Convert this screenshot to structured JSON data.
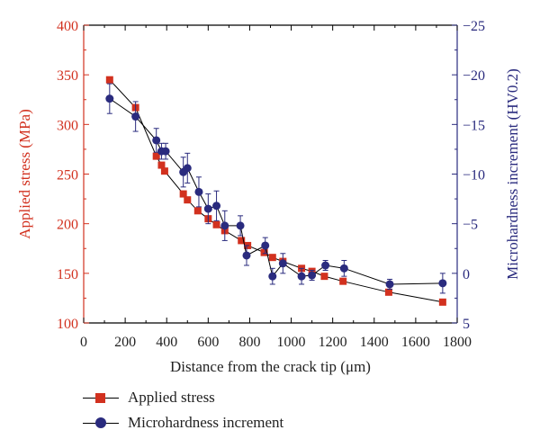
{
  "chart_data": {
    "type": "scatter",
    "xlabel": "Distance from the crack tip (μm)",
    "y1label": "Applied stress (MPa)",
    "y2label": "Microhardness increment (HV0.2)",
    "xlim": [
      0,
      1800
    ],
    "y1lim": [
      100,
      400
    ],
    "y2lim": [
      5,
      -25
    ],
    "xticks": [
      0,
      200,
      400,
      600,
      800,
      1000,
      1200,
      1400,
      1600,
      1800
    ],
    "y1ticks": [
      100,
      150,
      200,
      250,
      300,
      350,
      400
    ],
    "y2ticks": [
      5,
      0,
      -5,
      -10,
      -15,
      -20,
      -25
    ],
    "y2ticklabels": [
      "5",
      "0",
      "−5",
      "−10",
      "−15",
      "−20",
      "−25"
    ],
    "grid": false,
    "legend_position": "bottom-left",
    "colors": {
      "stress": "#d2311f",
      "micro": "#2a2b7e",
      "y1axis": "#d2311f",
      "y2axis": "#2a2b7e"
    },
    "series": [
      {
        "name": "Applied stress",
        "axis": "left",
        "marker": "square",
        "points": [
          [
            125,
            345
          ],
          [
            250,
            317
          ],
          [
            350,
            268
          ],
          [
            375,
            259
          ],
          [
            390,
            253
          ],
          [
            480,
            230
          ],
          [
            500,
            224
          ],
          [
            550,
            213
          ],
          [
            600,
            205
          ],
          [
            640,
            199
          ],
          [
            680,
            193
          ],
          [
            760,
            183
          ],
          [
            790,
            178
          ],
          [
            870,
            171
          ],
          [
            910,
            166
          ],
          [
            960,
            162
          ],
          [
            1050,
            155
          ],
          [
            1100,
            152
          ],
          [
            1160,
            147
          ],
          [
            1250,
            142
          ],
          [
            1470,
            131
          ],
          [
            1730,
            121
          ]
        ]
      },
      {
        "name": "Microhardness increment",
        "axis": "right",
        "marker": "circle",
        "points": [
          [
            125,
            -17.6,
            1.5
          ],
          [
            250,
            -15.8,
            1.5
          ],
          [
            350,
            -13.4,
            1.2
          ],
          [
            375,
            -12.3,
            0.8
          ],
          [
            395,
            -12.3,
            0.8
          ],
          [
            480,
            -10.2,
            1.5
          ],
          [
            500,
            -10.6,
            1.5
          ],
          [
            555,
            -8.2,
            1.5
          ],
          [
            600,
            -6.5,
            1.5
          ],
          [
            640,
            -6.8,
            1.5
          ],
          [
            680,
            -4.8,
            1.5
          ],
          [
            755,
            -4.8,
            1.0
          ],
          [
            785,
            -1.8,
            1.0
          ],
          [
            875,
            -2.8,
            0.8
          ],
          [
            910,
            0.3,
            0.8
          ],
          [
            960,
            -1.0,
            1.0
          ],
          [
            1050,
            0.3,
            0.8
          ],
          [
            1100,
            0.2,
            0.5
          ],
          [
            1165,
            -0.8,
            0.5
          ],
          [
            1255,
            -0.5,
            0.8
          ],
          [
            1475,
            1.1,
            0.5
          ],
          [
            1730,
            1.0,
            1.0
          ]
        ]
      }
    ]
  }
}
